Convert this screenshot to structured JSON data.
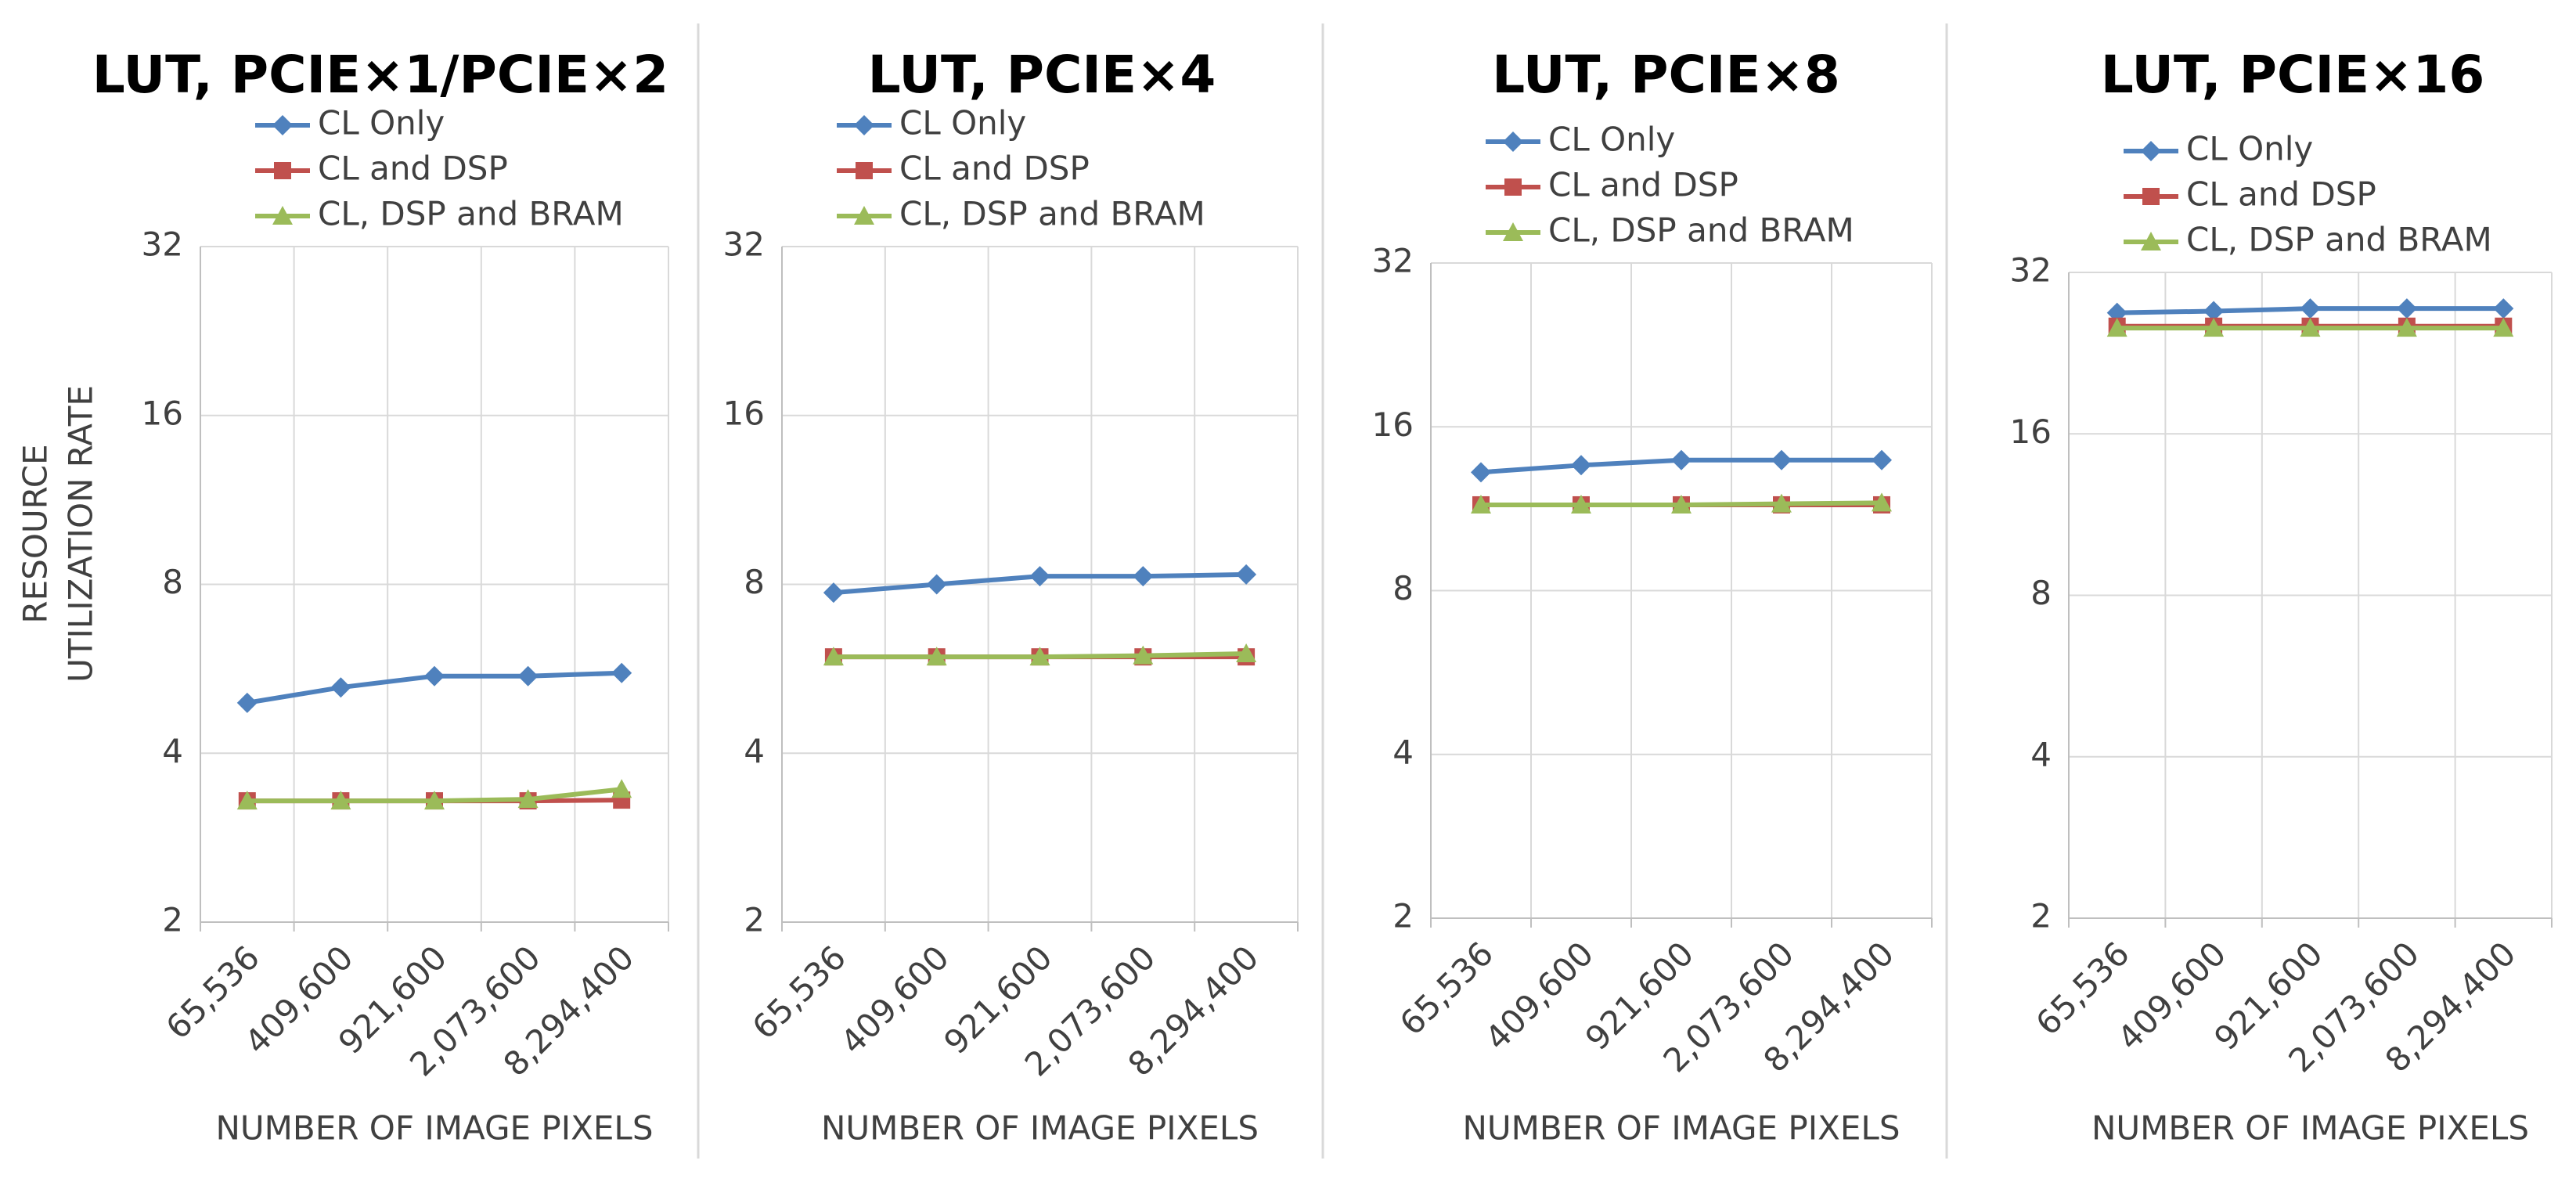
{
  "chart_data": [
    {
      "type": "line",
      "title": "LUT, PCIE×1/PCIE×2",
      "y_label": [
        "RESOURCE",
        "UTILIZATION RATE"
      ],
      "x_label": "NUMBER OF IMAGE PIXELS",
      "categories": [
        "65,536",
        "409,600",
        "921,600",
        "2,073,600",
        "8,294,400"
      ],
      "ylim": [
        2,
        32
      ],
      "yticks": [
        2,
        4,
        8,
        16,
        32
      ],
      "log_scale": true,
      "grid": true,
      "series": [
        {
          "name": "CL Only",
          "color": "#4f81bd",
          "marker": "diamond",
          "values": [
            4.92,
            5.24,
            5.49,
            5.49,
            5.56
          ]
        },
        {
          "name": "CL and DSP",
          "color": "#c0504d",
          "marker": "square",
          "values": [
            3.29,
            3.29,
            3.29,
            3.29,
            3.3
          ]
        },
        {
          "name": "CL, DSP and BRAM",
          "color": "#9bbb59",
          "marker": "triangle",
          "values": [
            3.29,
            3.29,
            3.29,
            3.31,
            3.45
          ]
        }
      ]
    },
    {
      "type": "line",
      "title": "LUT, PCIE×4",
      "x_label": "NUMBER OF IMAGE PIXELS",
      "categories": [
        "65,536",
        "409,600",
        "921,600",
        "2,073,600",
        "8,294,400"
      ],
      "ylim": [
        2,
        32
      ],
      "yticks": [
        2,
        4,
        8,
        16,
        32
      ],
      "log_scale": true,
      "grid": true,
      "series": [
        {
          "name": "CL Only",
          "color": "#4f81bd",
          "marker": "diamond",
          "values": [
            7.73,
            8.0,
            8.27,
            8.27,
            8.33
          ]
        },
        {
          "name": "CL and DSP",
          "color": "#c0504d",
          "marker": "square",
          "values": [
            5.94,
            5.94,
            5.94,
            5.94,
            5.94
          ]
        },
        {
          "name": "CL, DSP and BRAM",
          "color": "#9bbb59",
          "marker": "triangle",
          "values": [
            5.94,
            5.94,
            5.94,
            5.97,
            6.02
          ]
        }
      ]
    },
    {
      "type": "line",
      "title": "LUT, PCIE×8",
      "x_label": "NUMBER OF IMAGE PIXELS",
      "categories": [
        "65,536",
        "409,600",
        "921,600",
        "2,073,600",
        "8,294,400"
      ],
      "ylim": [
        2,
        32
      ],
      "yticks": [
        2,
        4,
        8,
        16,
        32
      ],
      "log_scale": true,
      "grid": true,
      "series": [
        {
          "name": "CL Only",
          "color": "#4f81bd",
          "marker": "diamond",
          "values": [
            13.2,
            13.6,
            13.9,
            13.9,
            13.9
          ]
        },
        {
          "name": "CL and DSP",
          "color": "#c0504d",
          "marker": "square",
          "values": [
            11.5,
            11.5,
            11.5,
            11.5,
            11.5
          ]
        },
        {
          "name": "CL, DSP and BRAM",
          "color": "#9bbb59",
          "marker": "triangle",
          "values": [
            11.5,
            11.5,
            11.5,
            11.55,
            11.6
          ]
        }
      ]
    },
    {
      "type": "line",
      "title": "LUT, PCIE×16",
      "x_label": "NUMBER OF IMAGE PIXELS",
      "categories": [
        "65,536",
        "409,600",
        "921,600",
        "2,073,600",
        "8,294,400"
      ],
      "ylim": [
        2,
        32
      ],
      "yticks": [
        2,
        4,
        8,
        16,
        32
      ],
      "log_scale": true,
      "grid": true,
      "series": [
        {
          "name": "CL Only",
          "color": "#4f81bd",
          "marker": "diamond",
          "values": [
            26.9,
            27.1,
            27.4,
            27.4,
            27.4
          ]
        },
        {
          "name": "CL and DSP",
          "color": "#c0504d",
          "marker": "square",
          "values": [
            25.4,
            25.4,
            25.4,
            25.4,
            25.4
          ]
        },
        {
          "name": "CL, DSP and BRAM",
          "color": "#9bbb59",
          "marker": "triangle",
          "values": [
            25.2,
            25.2,
            25.2,
            25.2,
            25.2
          ]
        }
      ]
    }
  ]
}
